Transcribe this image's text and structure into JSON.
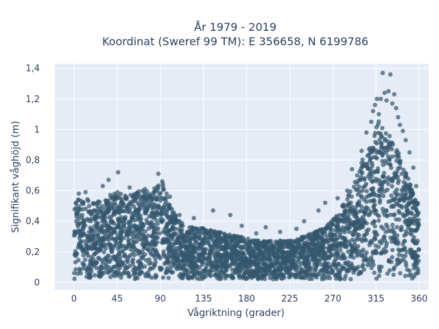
{
  "chart_data": {
    "type": "scatter",
    "title_lines": [
      "År 1979 - 2019",
      "Koordinat (Sweref 99 TM): E 356658, N 6199786"
    ],
    "xlabel": "Vågriktning (grader)",
    "ylabel": "Signifikant våghöjd (m)",
    "xlim": [
      -20,
      370
    ],
    "ylim": [
      -0.05,
      1.43
    ],
    "x_ticks": [
      0,
      45,
      90,
      135,
      180,
      225,
      270,
      315,
      360
    ],
    "x_tick_labels": [
      "0",
      "45",
      "90",
      "135",
      "180",
      "225",
      "270",
      "315",
      "360"
    ],
    "y_ticks": [
      0,
      0.2,
      0.4,
      0.6,
      0.8,
      1.0,
      1.2,
      1.4
    ],
    "y_tick_labels": [
      "0",
      "0,2",
      "0,4",
      "0,6",
      "0,8",
      "1",
      "1,2",
      "1,4"
    ],
    "grid": true,
    "marker_color": "#34586e",
    "background_color": "#e5ecf6",
    "envelope": {
      "direction_deg": [
        0,
        10,
        20,
        30,
        40,
        45,
        55,
        65,
        75,
        85,
        90,
        95,
        100,
        110,
        120,
        135,
        150,
        165,
        180,
        195,
        210,
        225,
        240,
        255,
        265,
        275,
        285,
        295,
        305,
        310,
        315,
        320,
        325,
        330,
        335,
        340,
        345,
        350,
        355,
        360
      ],
      "max_height_m": [
        0.54,
        0.56,
        0.52,
        0.55,
        0.58,
        0.6,
        0.56,
        0.6,
        0.6,
        0.62,
        0.68,
        0.62,
        0.5,
        0.4,
        0.36,
        0.36,
        0.33,
        0.31,
        0.29,
        0.27,
        0.27,
        0.28,
        0.3,
        0.34,
        0.38,
        0.45,
        0.55,
        0.7,
        0.88,
        0.97,
        1.08,
        1.05,
        1.0,
        0.97,
        0.9,
        0.83,
        0.75,
        0.66,
        0.58,
        0.5
      ]
    },
    "outliers": [
      {
        "x": 46,
        "y": 0.72
      },
      {
        "x": 36,
        "y": 0.67
      },
      {
        "x": 88,
        "y": 0.71
      },
      {
        "x": 92,
        "y": 0.66
      },
      {
        "x": 58,
        "y": 0.62
      },
      {
        "x": 30,
        "y": 0.63
      },
      {
        "x": 74,
        "y": 0.61
      },
      {
        "x": 145,
        "y": 0.47
      },
      {
        "x": 163,
        "y": 0.44
      },
      {
        "x": 175,
        "y": 0.37
      },
      {
        "x": 200,
        "y": 0.36
      },
      {
        "x": 240,
        "y": 0.4
      },
      {
        "x": 255,
        "y": 0.47
      },
      {
        "x": 262,
        "y": 0.52
      },
      {
        "x": 275,
        "y": 0.55
      },
      {
        "x": 285,
        "y": 0.6
      },
      {
        "x": 290,
        "y": 0.74
      },
      {
        "x": 300,
        "y": 0.86
      },
      {
        "x": 305,
        "y": 0.98
      },
      {
        "x": 310,
        "y": 1.05
      },
      {
        "x": 312,
        "y": 1.12
      },
      {
        "x": 314,
        "y": 1.16
      },
      {
        "x": 316,
        "y": 1.2
      },
      {
        "x": 318,
        "y": 1.1
      },
      {
        "x": 320,
        "y": 1.2
      },
      {
        "x": 322,
        "y": 1.37
      },
      {
        "x": 324,
        "y": 1.24
      },
      {
        "x": 326,
        "y": 1.19
      },
      {
        "x": 328,
        "y": 1.25
      },
      {
        "x": 330,
        "y": 1.36
      },
      {
        "x": 332,
        "y": 1.17
      },
      {
        "x": 334,
        "y": 1.23
      },
      {
        "x": 336,
        "y": 1.14
      },
      {
        "x": 338,
        "y": 1.08
      },
      {
        "x": 340,
        "y": 1.03
      },
      {
        "x": 343,
        "y": 0.99
      },
      {
        "x": 346,
        "y": 0.93
      },
      {
        "x": 350,
        "y": 0.85
      },
      {
        "x": 354,
        "y": 0.75
      },
      {
        "x": 357,
        "y": 0.63
      },
      {
        "x": 5,
        "y": 0.58
      },
      {
        "x": 12,
        "y": 0.59
      },
      {
        "x": 100,
        "y": 0.56
      },
      {
        "x": 110,
        "y": 0.44
      },
      {
        "x": 125,
        "y": 0.42
      },
      {
        "x": 190,
        "y": 0.32
      },
      {
        "x": 215,
        "y": 0.33
      },
      {
        "x": 232,
        "y": 0.35
      }
    ]
  }
}
